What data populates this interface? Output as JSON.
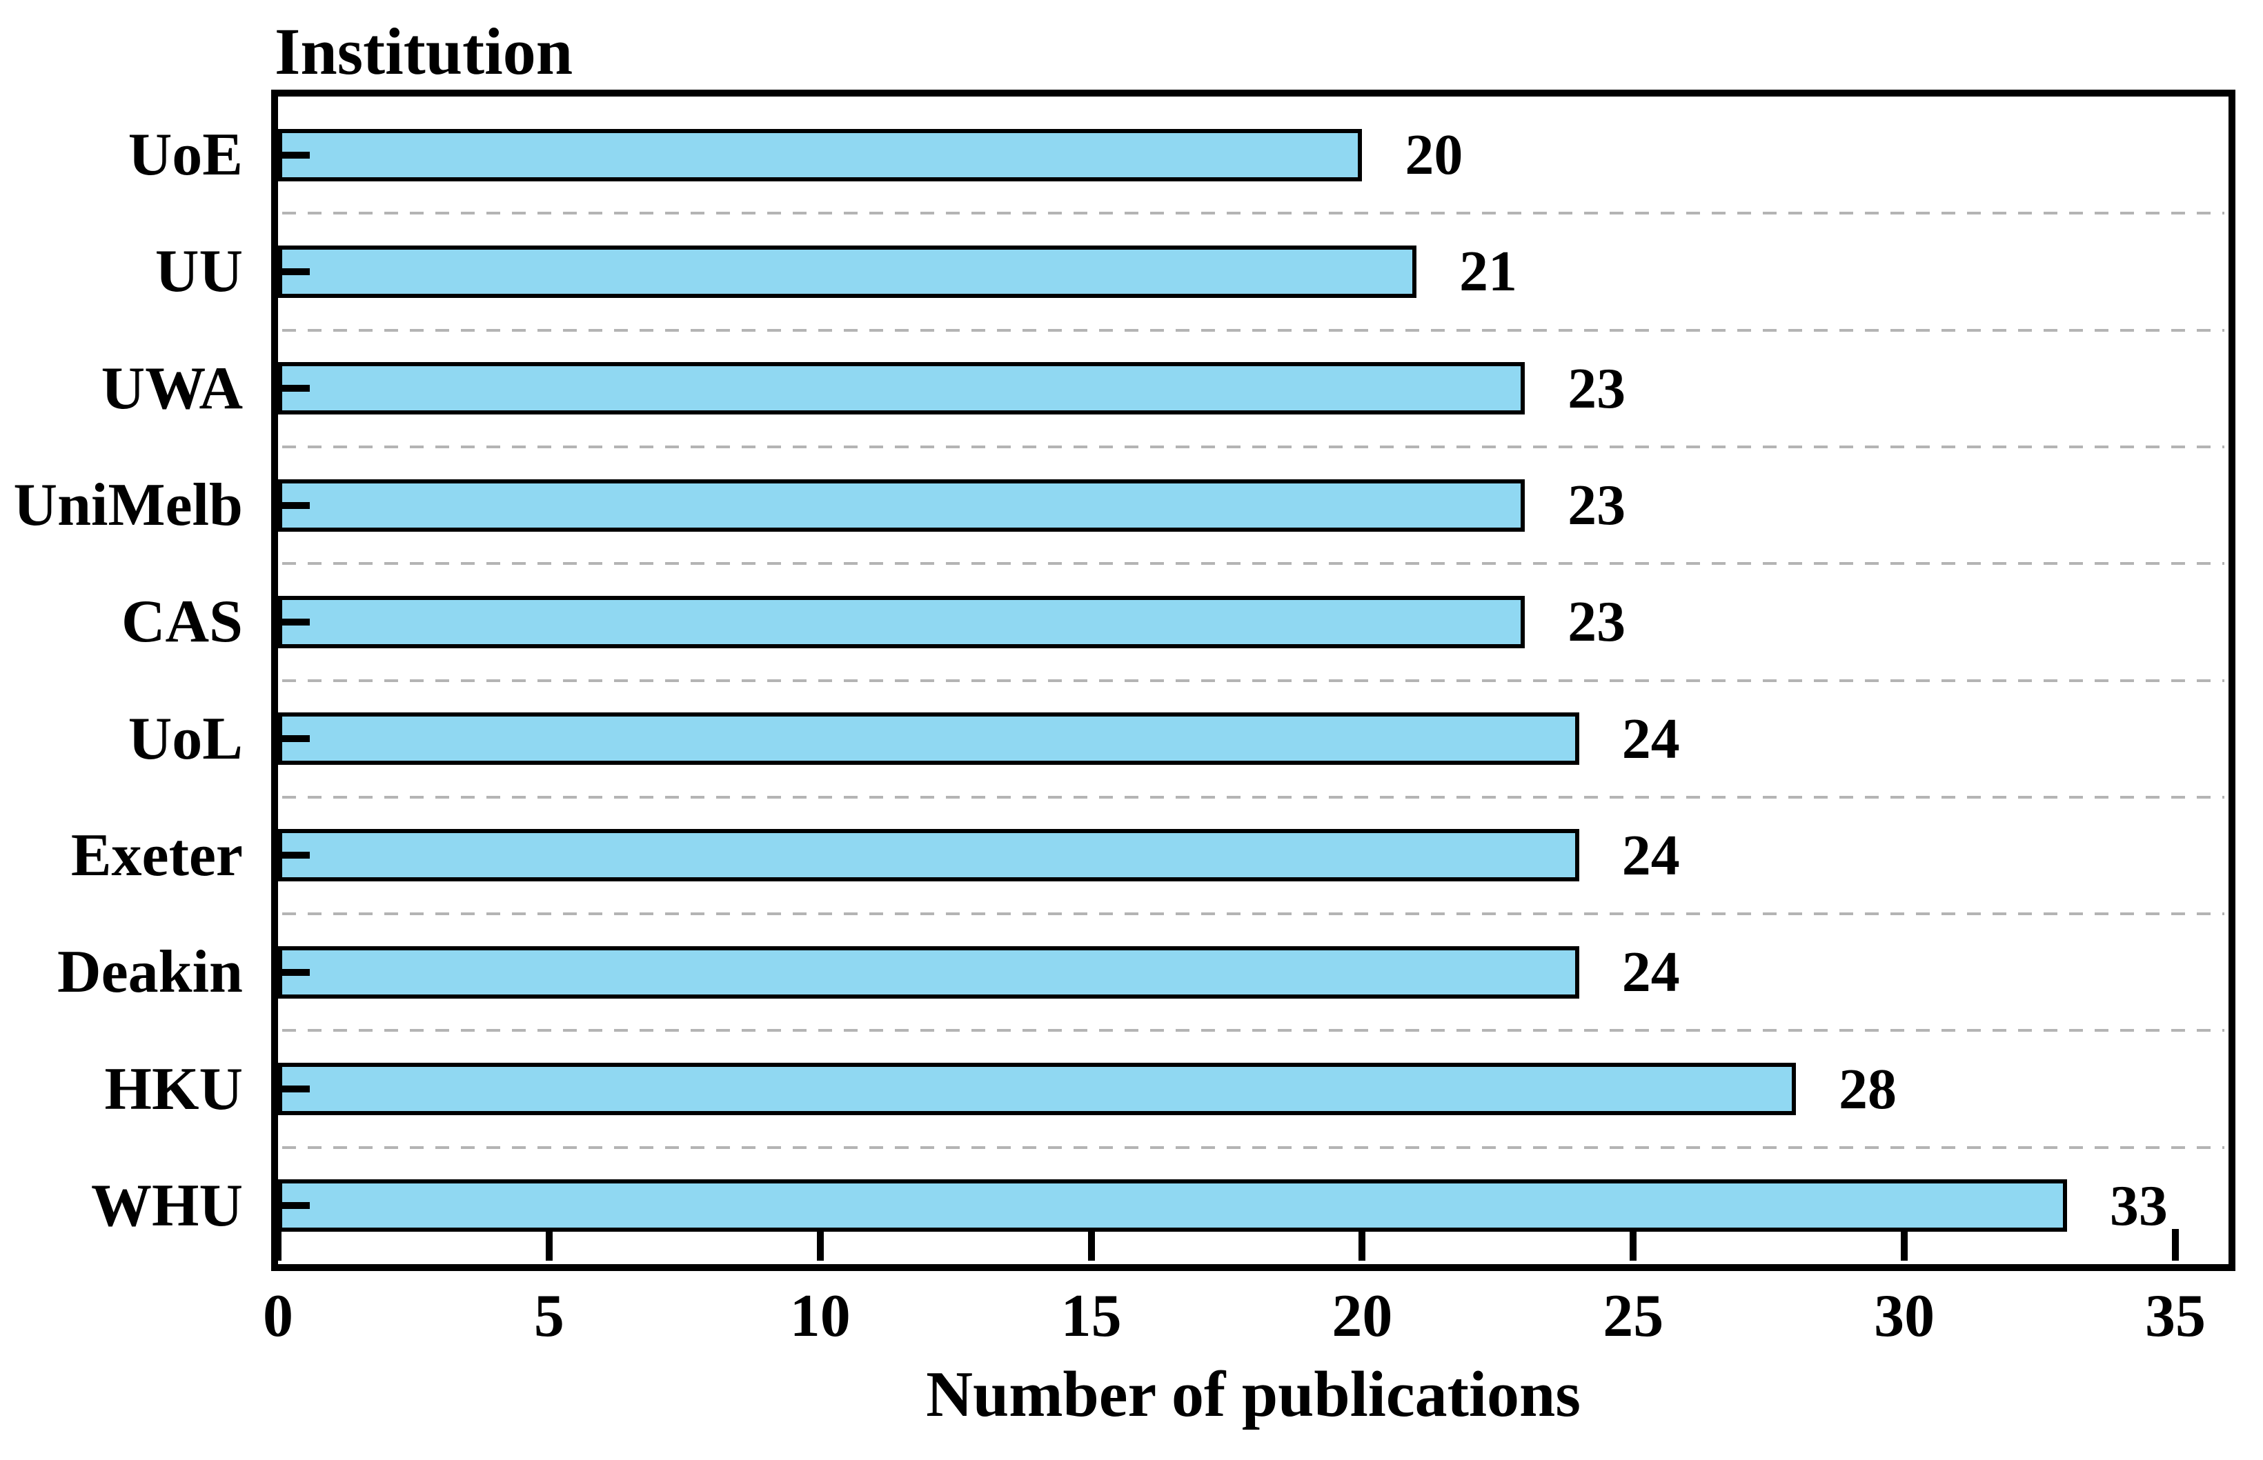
{
  "chart_data": {
    "type": "bar",
    "orientation": "horizontal",
    "title": "Institution",
    "xlabel": "Number of publications",
    "categories": [
      "UoE",
      "UU",
      "UWA",
      "UniMelb",
      "CAS",
      "UoL",
      "Exeter",
      "Deakin",
      "HKU",
      "WHU"
    ],
    "values": [
      20,
      21,
      23,
      23,
      23,
      24,
      24,
      24,
      28,
      33
    ],
    "x_ticks": [
      0,
      5,
      10,
      15,
      20,
      25,
      30,
      35
    ],
    "xlim": [
      0,
      36
    ],
    "grid": "dashed-between-category-bands",
    "legend_position": "none",
    "colors": {
      "bar_fill": "#90D8F2",
      "bar_border": "#000000",
      "grid_line": "#b4b4b4",
      "frame": "#000000",
      "text": "#000000",
      "background": "#ffffff"
    }
  }
}
